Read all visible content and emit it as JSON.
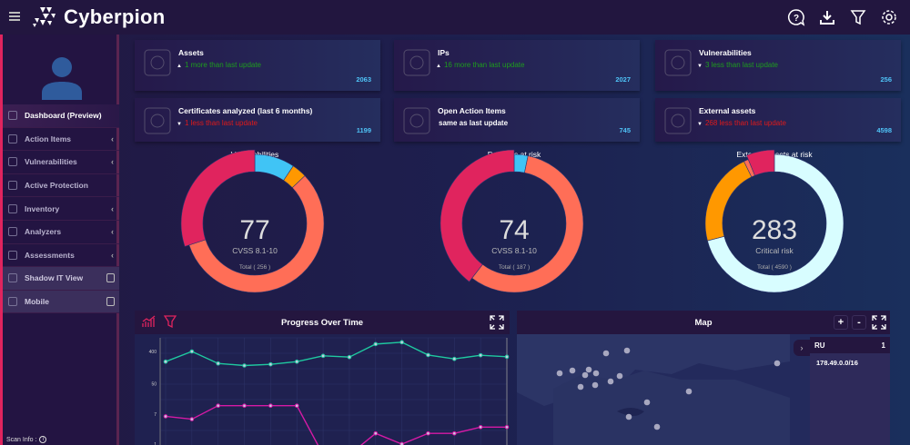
{
  "header": {
    "brand": "Cyberpion",
    "icons": [
      "help-icon",
      "download-icon",
      "filter-icon",
      "settings-icon"
    ]
  },
  "sidebar": {
    "items": [
      {
        "label": "Dashboard (Preview)",
        "icon": "dashboard-icon",
        "active": true
      },
      {
        "label": "Action Items",
        "icon": "action-items-icon",
        "chevron": true
      },
      {
        "label": "Vulnerabilities",
        "icon": "cloud-icon",
        "chevron": true
      },
      {
        "label": "Active Protection",
        "icon": "cloud-icon"
      },
      {
        "label": "Inventory",
        "icon": "inventory-icon",
        "chevron": true
      },
      {
        "label": "Analyzers",
        "icon": "analyzers-icon",
        "chevron": true
      },
      {
        "label": "Assessments",
        "icon": "assessments-icon",
        "chevron": true
      },
      {
        "label": "Shadow IT View",
        "icon": "shadow-it-icon",
        "locked": true
      },
      {
        "label": "Mobile",
        "icon": "mobile-icon",
        "locked": true
      }
    ],
    "scan_info": "Scan Info :"
  },
  "cards": [
    {
      "title": "Assets",
      "delta": "1 more than last update",
      "trend": "up",
      "value": "2063",
      "icon": "globe-cloud-icon"
    },
    {
      "title": "IPs",
      "delta": "16 more than last update",
      "trend": "up",
      "value": "2027",
      "icon": "server-shield-icon"
    },
    {
      "title": "Vulnerabilities",
      "delta": "3 less than last update",
      "trend": "down-good",
      "value": "256",
      "icon": "bug-window-icon"
    },
    {
      "title": "Certificates analyzed (last 6 months)",
      "delta": "1 less than last update",
      "trend": "down",
      "value": "1199",
      "icon": "certificate-icon"
    },
    {
      "title": "Open Action Items",
      "delta": "same as last update",
      "trend": "same",
      "value": "745",
      "icon": "shield-check-icon"
    },
    {
      "title": "External assets",
      "delta": "268 less than last update",
      "trend": "down",
      "value": "4598",
      "icon": "network-icon"
    }
  ],
  "chart_data": [
    {
      "type": "pie",
      "title": "Vulnerabilities",
      "center_value": "77",
      "center_label": "CVSS 8.1-10",
      "total_label": "Total ( 256 )",
      "values": [
        24,
        9,
        146,
        77
      ],
      "colors": [
        "#40c4f5",
        "#ff9800",
        "#ff6e57",
        "#e0245e"
      ],
      "highlighted_index": 3
    },
    {
      "type": "pie",
      "title": "Domains at risk",
      "center_value": "74",
      "center_label": "CVSS 8.1-10",
      "total_label": "Total ( 187 )",
      "values": [
        6,
        107,
        74
      ],
      "colors": [
        "#40c4f5",
        "#ff6e57",
        "#e0245e"
      ],
      "highlighted_index": 2
    },
    {
      "type": "pie",
      "title": "External assets at risk",
      "center_value": "283",
      "center_label": "Critical risk",
      "total_label": "Total ( 4590 )",
      "values": [
        3257,
        1000,
        50,
        283
      ],
      "colors": [
        "#d8fdff",
        "#ff9800",
        "#ff6e57",
        "#e0245e"
      ],
      "highlighted_index": 3
    },
    {
      "type": "line",
      "title": "Progress Over Time",
      "yscale": "log",
      "yticks": [
        "1",
        "7",
        "50",
        "400"
      ],
      "ylim": [
        1,
        900
      ],
      "grid": true,
      "series": [
        {
          "color": "#1fc9a0",
          "values": [
            207,
            400,
            184,
            161,
            174,
            207,
            301,
            278,
            645,
            727,
            318,
            247,
            313,
            284
          ]
        },
        {
          "color": "#d61aa6",
          "values": [
            6,
            5,
            12,
            12,
            12,
            12,
            0.5,
            0.5,
            2,
            1,
            2,
            2,
            3,
            3
          ]
        }
      ]
    }
  ],
  "progress_panel": {
    "title": "Progress Over Time",
    "icons": [
      "trend-chart-icon",
      "filter-icon",
      "expand-icon"
    ]
  },
  "map_panel": {
    "title": "Map",
    "zoom_in": "+",
    "zoom_out": "-",
    "selected_country": "RU",
    "selected_count": "1",
    "ip_ranges": [
      "178.49.0.0/16"
    ]
  }
}
